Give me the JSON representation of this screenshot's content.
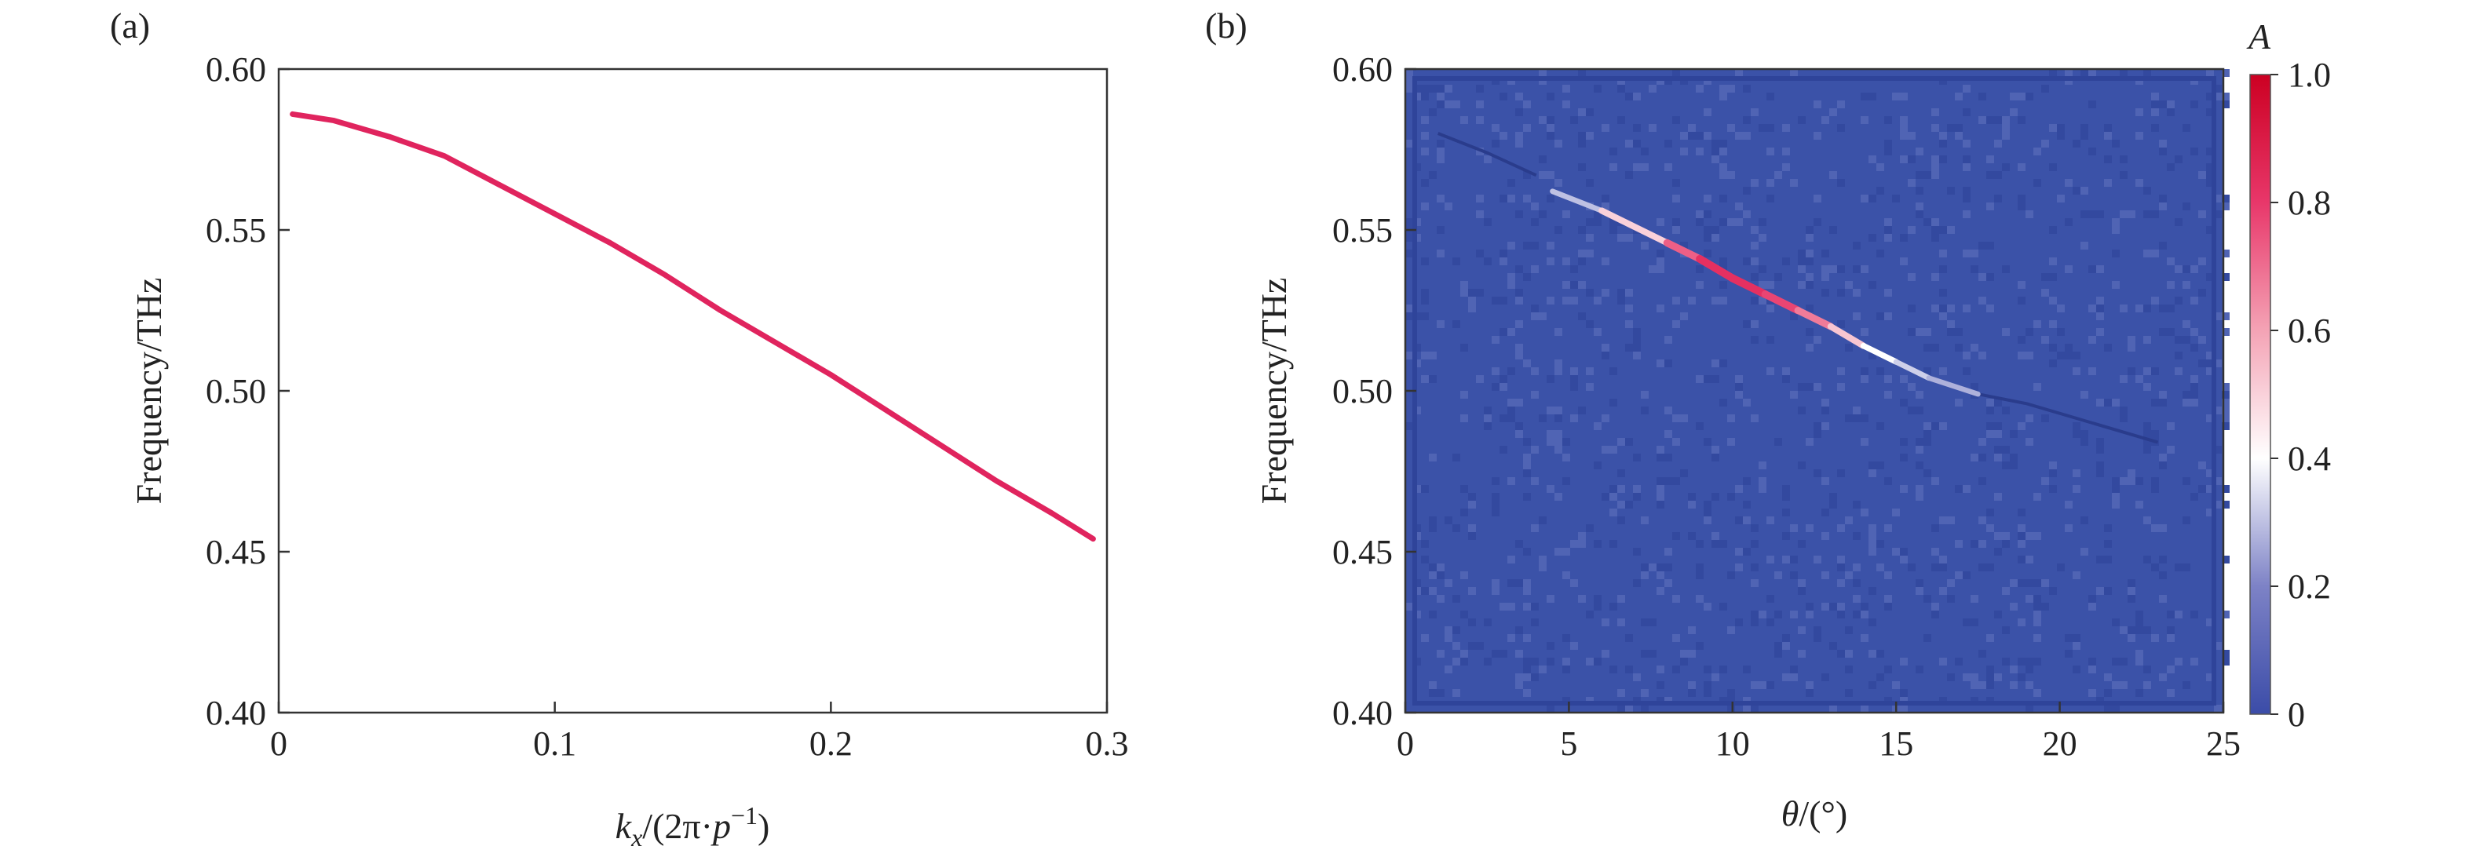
{
  "chart_data": [
    {
      "type": "line",
      "panel_label": "(a)",
      "xlabel_parts": [
        "k",
        "x",
        "/(2π·",
        "p",
        "−1",
        ")"
      ],
      "ylabel": "Frequency/THz",
      "xlim": [
        0,
        0.3
      ],
      "ylim": [
        0.4,
        0.6
      ],
      "xticks": [
        0,
        0.1,
        0.2,
        0.3
      ],
      "xtick_labels": [
        "0",
        "0.1",
        "0.2",
        "0.3"
      ],
      "yticks": [
        0.4,
        0.45,
        0.5,
        0.55,
        0.6
      ],
      "ytick_labels": [
        "0.40",
        "0.45",
        "0.50",
        "0.55",
        "0.60"
      ],
      "grid": false,
      "series": [
        {
          "color": "#e0245e",
          "x": [
            0.005,
            0.02,
            0.04,
            0.06,
            0.08,
            0.1,
            0.12,
            0.14,
            0.16,
            0.18,
            0.2,
            0.22,
            0.24,
            0.26,
            0.28,
            0.295
          ],
          "y": [
            0.586,
            0.584,
            0.579,
            0.573,
            0.564,
            0.555,
            0.546,
            0.536,
            0.525,
            0.515,
            0.505,
            0.494,
            0.483,
            0.472,
            0.462,
            0.454
          ]
        }
      ]
    },
    {
      "type": "heatmap",
      "panel_label": "(b)",
      "xlabel_parts": [
        "θ",
        "/(°)"
      ],
      "ylabel": "Frequency/THz",
      "xlim": [
        0,
        25
      ],
      "ylim": [
        0.4,
        0.6
      ],
      "xticks": [
        0,
        5,
        10,
        15,
        20,
        25
      ],
      "xtick_labels": [
        "0",
        "5",
        "10",
        "15",
        "20",
        "25"
      ],
      "yticks": [
        0.4,
        0.45,
        0.5,
        0.55,
        0.6
      ],
      "ytick_labels": [
        "0.40",
        "0.45",
        "0.50",
        "0.55",
        "0.60"
      ],
      "background_color": "#3b52a8",
      "colorbar": {
        "label": "A",
        "range": [
          0,
          1.0
        ],
        "ticks": [
          0,
          0.2,
          0.4,
          0.6,
          0.8,
          1.0
        ],
        "tick_labels": [
          "0",
          "0.2",
          "0.4",
          "0.6",
          "0.8",
          "1.0"
        ],
        "colors": [
          "#3b4ca8",
          "#7d82c6",
          "#ffffff",
          "#f4a3b5",
          "#e8376a",
          "#cc0022"
        ]
      },
      "ridge": {
        "x": [
          4.5,
          6,
          8,
          9,
          10,
          11,
          12,
          13,
          14,
          15,
          16,
          17.5
        ],
        "y": [
          0.562,
          0.556,
          0.546,
          0.541,
          0.535,
          0.53,
          0.525,
          0.52,
          0.514,
          0.509,
          0.504,
          0.499
        ],
        "A": [
          0.25,
          0.35,
          0.65,
          0.8,
          0.85,
          0.8,
          0.75,
          0.6,
          0.45,
          0.35,
          0.3,
          0.25
        ]
      },
      "faint_lines": [
        {
          "x": [
            1.0,
            2.5,
            4.0
          ],
          "y": [
            0.58,
            0.574,
            0.567
          ]
        },
        {
          "x": [
            17.5,
            19,
            21,
            23
          ],
          "y": [
            0.499,
            0.496,
            0.49,
            0.484
          ]
        }
      ]
    }
  ]
}
